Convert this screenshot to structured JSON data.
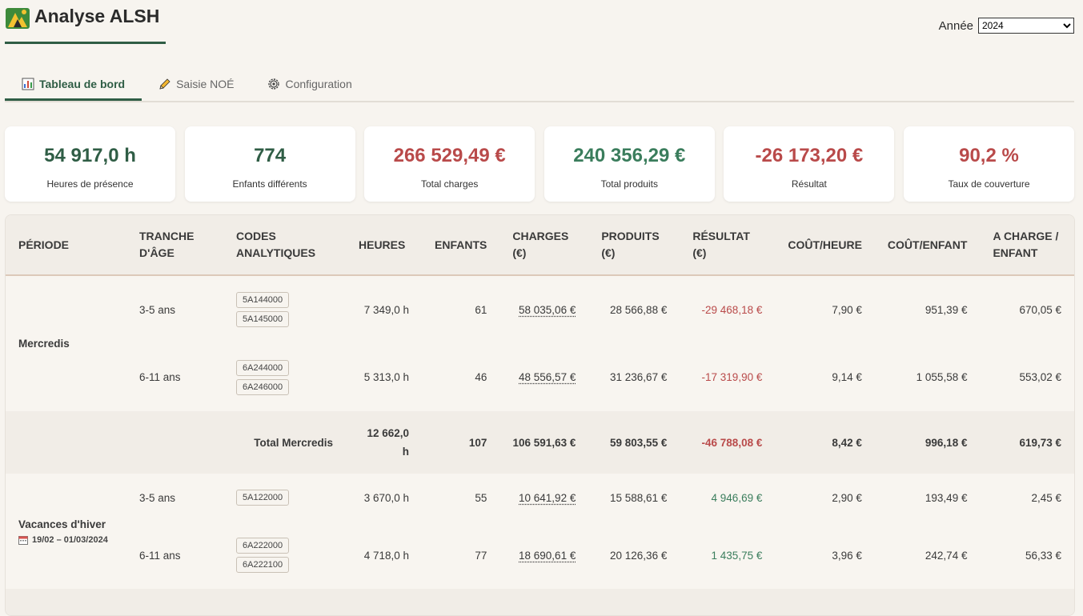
{
  "header": {
    "title": "Analyse ALSH",
    "year_label": "Année",
    "year_value": "2024",
    "year_options": [
      "2024"
    ]
  },
  "tabs": [
    {
      "label": "Tableau de bord",
      "icon": "bar-chart-icon",
      "active": true
    },
    {
      "label": "Saisie NOÉ",
      "icon": "pencil-icon",
      "active": false
    },
    {
      "label": "Configuration",
      "icon": "gear-icon",
      "active": false
    }
  ],
  "kpis": [
    {
      "value": "54 917,0 h",
      "label": "Heures de présence",
      "color": "#2f5d45"
    },
    {
      "value": "774",
      "label": "Enfants différents",
      "color": "#2f5d45"
    },
    {
      "value": "266 529,49 €",
      "label": "Total charges",
      "color": "#b94a4a"
    },
    {
      "value": "240 356,29 €",
      "label": "Total produits",
      "color": "#3a7d5c"
    },
    {
      "value": "-26 173,20 €",
      "label": "Résultat",
      "color": "#b94a4a"
    },
    {
      "value": "90,2 %",
      "label": "Taux de couverture",
      "color": "#b94a4a"
    }
  ],
  "table": {
    "headers": [
      "PÉRIODE",
      "TRANCHE D'ÂGE",
      "CODES ANALYTIQUES",
      "HEURES",
      "ENFANTS",
      "CHARGES (€)",
      "PRODUITS (€)",
      "RÉSULTAT (€)",
      "COÛT/HEURE",
      "COÛT/ENFANT",
      "A CHARGE / ENFANT"
    ],
    "mercredis": {
      "period": "Mercredis",
      "rows": [
        {
          "age": "3-5 ans",
          "codes": [
            "5A144000",
            "5A145000"
          ],
          "heures": "7 349,0 h",
          "enfants": "61",
          "charges": "58 035,06 €",
          "produits": "28 566,88 €",
          "resultat": "-29 468,18 €",
          "cout_heure": "7,90 €",
          "cout_enfant": "951,39 €",
          "a_charge": "670,05 €"
        },
        {
          "age": "6-11 ans",
          "codes": [
            "6A244000",
            "6A246000"
          ],
          "heures": "5 313,0 h",
          "enfants": "46",
          "charges": "48 556,57 €",
          "produits": "31 236,67 €",
          "resultat": "-17 319,90 €",
          "cout_heure": "9,14 €",
          "cout_enfant": "1 055,58 €",
          "a_charge": "553,02 €"
        }
      ],
      "total": {
        "label": "Total Mercredis",
        "heures_1": "12 662,0",
        "heures_2": "h",
        "enfants": "107",
        "charges": "106 591,63 €",
        "produits": "59 803,55 €",
        "resultat": "-46 788,08 €",
        "cout_heure": "8,42 €",
        "cout_enfant": "996,18 €",
        "a_charge": "619,73 €"
      }
    },
    "hiver": {
      "period": "Vacances d'hiver",
      "dates": "19/02 – 01/03/2024",
      "rows": [
        {
          "age": "3-5 ans",
          "codes": [
            "5A122000"
          ],
          "heures": "3 670,0 h",
          "enfants": "55",
          "charges": "10 641,92 €",
          "produits": "15 588,61 €",
          "resultat": "4 946,69 €",
          "cout_heure": "2,90 €",
          "cout_enfant": "193,49 €",
          "a_charge": "2,45 €"
        },
        {
          "age": "6-11 ans",
          "codes": [
            "6A222000",
            "6A222100"
          ],
          "heures": "4 718,0 h",
          "enfants": "77",
          "charges": "18 690,61 €",
          "produits": "20 126,36 €",
          "resultat": "1 435,75 €",
          "cout_heure": "3,96 €",
          "cout_enfant": "242,74 €",
          "a_charge": "56,33 €"
        }
      ]
    }
  },
  "colors": {
    "accent": "#2f5d45",
    "negative": "#b94a4a",
    "positive": "#3a7d5c"
  }
}
